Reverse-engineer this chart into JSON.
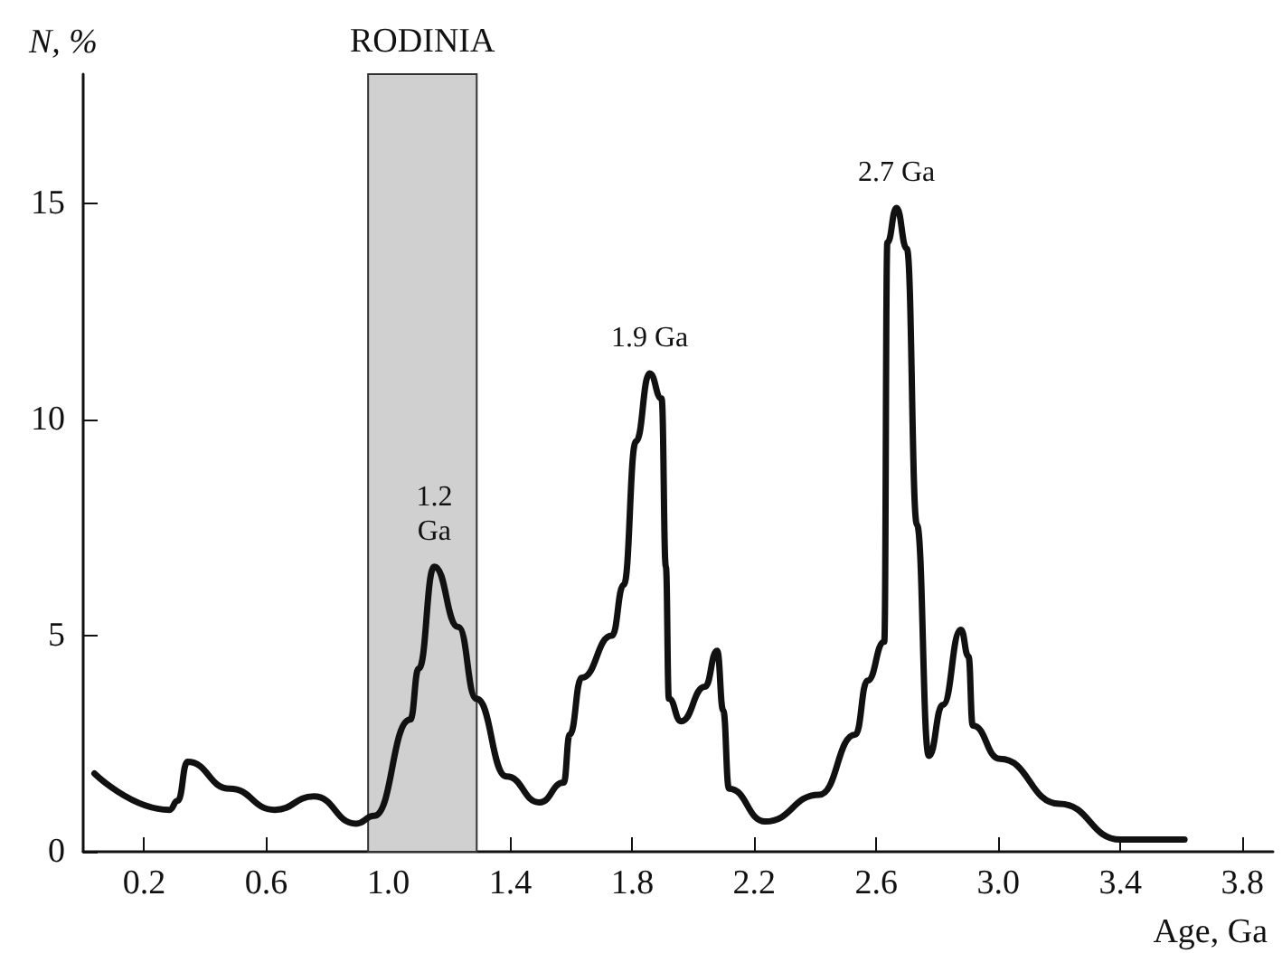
{
  "chart_data": {
    "type": "line",
    "xlabel": "Age, Ga",
    "ylabel": "N, %",
    "x": [
      0.037,
      0.283,
      0.31,
      0.342,
      0.48,
      0.628,
      0.756,
      0.895,
      0.954,
      1.072,
      1.1,
      1.151,
      1.23,
      1.289,
      1.388,
      1.496,
      1.575,
      1.595,
      1.634,
      1.733,
      1.772,
      1.812,
      1.857,
      1.896,
      1.91,
      1.92,
      1.96,
      2.038,
      2.078,
      2.098,
      2.117,
      2.236,
      2.413,
      2.531,
      2.571,
      2.626,
      2.636,
      2.666,
      2.7,
      2.733,
      2.772,
      2.818,
      2.877,
      2.902,
      2.916,
      3.005,
      3.2,
      3.4,
      3.61
    ],
    "series": [
      {
        "color": "#111111",
        "values": [
          1.81,
          0.97,
          1.18,
          2.08,
          1.46,
          0.97,
          1.28,
          0.65,
          0.83,
          3.06,
          4.24,
          6.6,
          5.2,
          3.54,
          1.74,
          1.14,
          1.6,
          2.71,
          4.03,
          5.0,
          6.18,
          9.5,
          11.07,
          10.49,
          6.6,
          3.54,
          3.02,
          3.82,
          4.65,
          3.27,
          1.46,
          0.7,
          1.32,
          2.71,
          3.96,
          4.86,
          14.1,
          14.9,
          13.96,
          7.57,
          2.22,
          3.4,
          5.14,
          4.52,
          2.92,
          2.15,
          1.11,
          0.28,
          0.28
        ]
      }
    ],
    "xlim": [
      0,
      3.9
    ],
    "xticks": [
      0.2,
      0.6,
      {
        "value": 1.0,
        "label": "1.0"
      },
      1.4,
      1.8,
      2.2,
      2.6,
      {
        "value": 3.0,
        "label": "3.0"
      },
      3.4,
      3.8
    ],
    "ylim": [
      0,
      18
    ],
    "yticks": [
      0,
      5,
      10,
      15
    ],
    "bands": [
      {
        "axis": "x",
        "from": 0.934,
        "to": 1.29,
        "label": "RODINIA",
        "color": "#d0d0d0"
      }
    ],
    "annotations": [
      {
        "text": "1.2\nGa",
        "x": 1.151,
        "y": 6.6
      },
      {
        "text": "1.9 Ga",
        "x": 1.857,
        "y": 11.07
      },
      {
        "text": "2.7 Ga",
        "x": 2.666,
        "y": 14.9
      }
    ],
    "grid": false,
    "marker": "none",
    "line_style": "solid"
  }
}
